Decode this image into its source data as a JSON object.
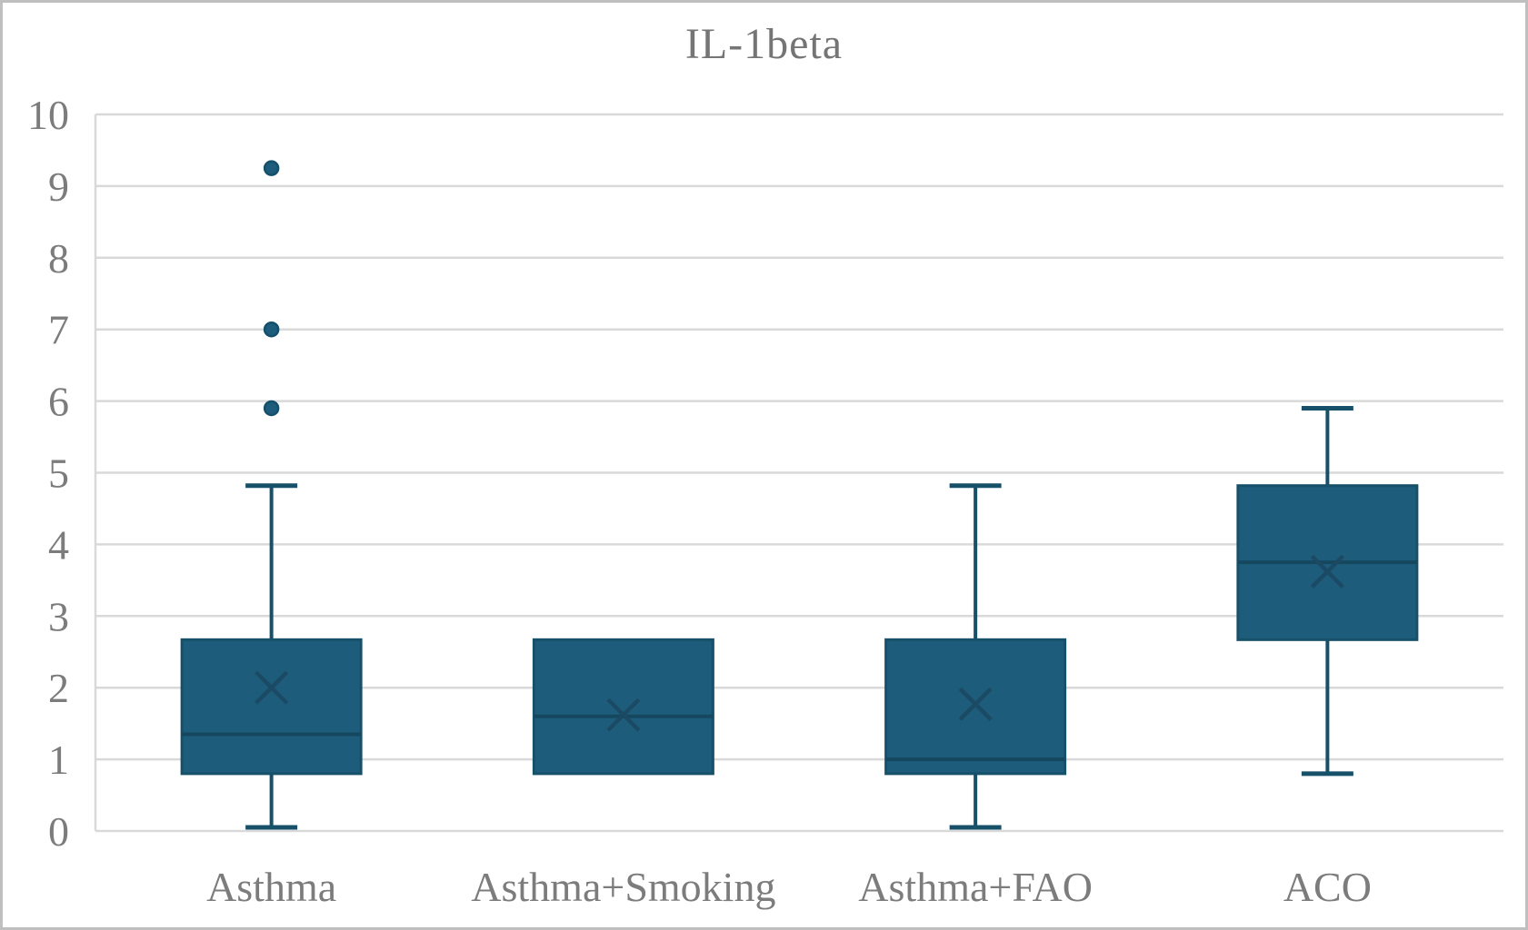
{
  "figure": {
    "background": "#ffffff",
    "border_color": "#bfbfbf"
  },
  "chart_data": {
    "type": "box",
    "title": "IL-1beta",
    "xlabel": "",
    "ylabel": "",
    "categories": [
      "Asthma",
      "Asthma+Smoking",
      "Asthma+FAO",
      "ACO"
    ],
    "ylim": [
      0,
      10
    ],
    "yticks": [
      0,
      1,
      2,
      3,
      4,
      5,
      6,
      7,
      8,
      9,
      10
    ],
    "grid": "horizontal",
    "legend": "none",
    "series": [
      {
        "category": "Asthma",
        "whisker_low": 0.05,
        "q1": 0.8,
        "median": 1.35,
        "mean": 2.0,
        "q3": 2.67,
        "whisker_high": 4.82,
        "outliers": [
          5.9,
          7.0,
          9.25
        ]
      },
      {
        "category": "Asthma+Smoking",
        "whisker_low": 0.8,
        "q1": 0.8,
        "median": 1.6,
        "mean": 1.62,
        "q3": 2.67,
        "whisker_high": 2.67,
        "outliers": []
      },
      {
        "category": "Asthma+FAO",
        "whisker_low": 0.05,
        "q1": 0.8,
        "median": 1.0,
        "mean": 1.77,
        "q3": 2.67,
        "whisker_high": 4.82,
        "outliers": []
      },
      {
        "category": "ACO",
        "whisker_low": 0.8,
        "q1": 2.67,
        "median": 3.75,
        "mean": 3.62,
        "q3": 4.82,
        "whisker_high": 5.9,
        "outliers": []
      }
    ],
    "colors": {
      "box_fill": "#1e5c7c",
      "box_stroke": "#175069",
      "median_line": "#15485f",
      "mean_marker": "#1b4a62",
      "outlier_fill": "#1e5c7c",
      "outlier_stroke": "#14506b",
      "gridline": "#d9d9d9",
      "axis_line": "#d9d9d9",
      "axis_text": "#7c7c7c",
      "title_text": "#757575"
    }
  }
}
